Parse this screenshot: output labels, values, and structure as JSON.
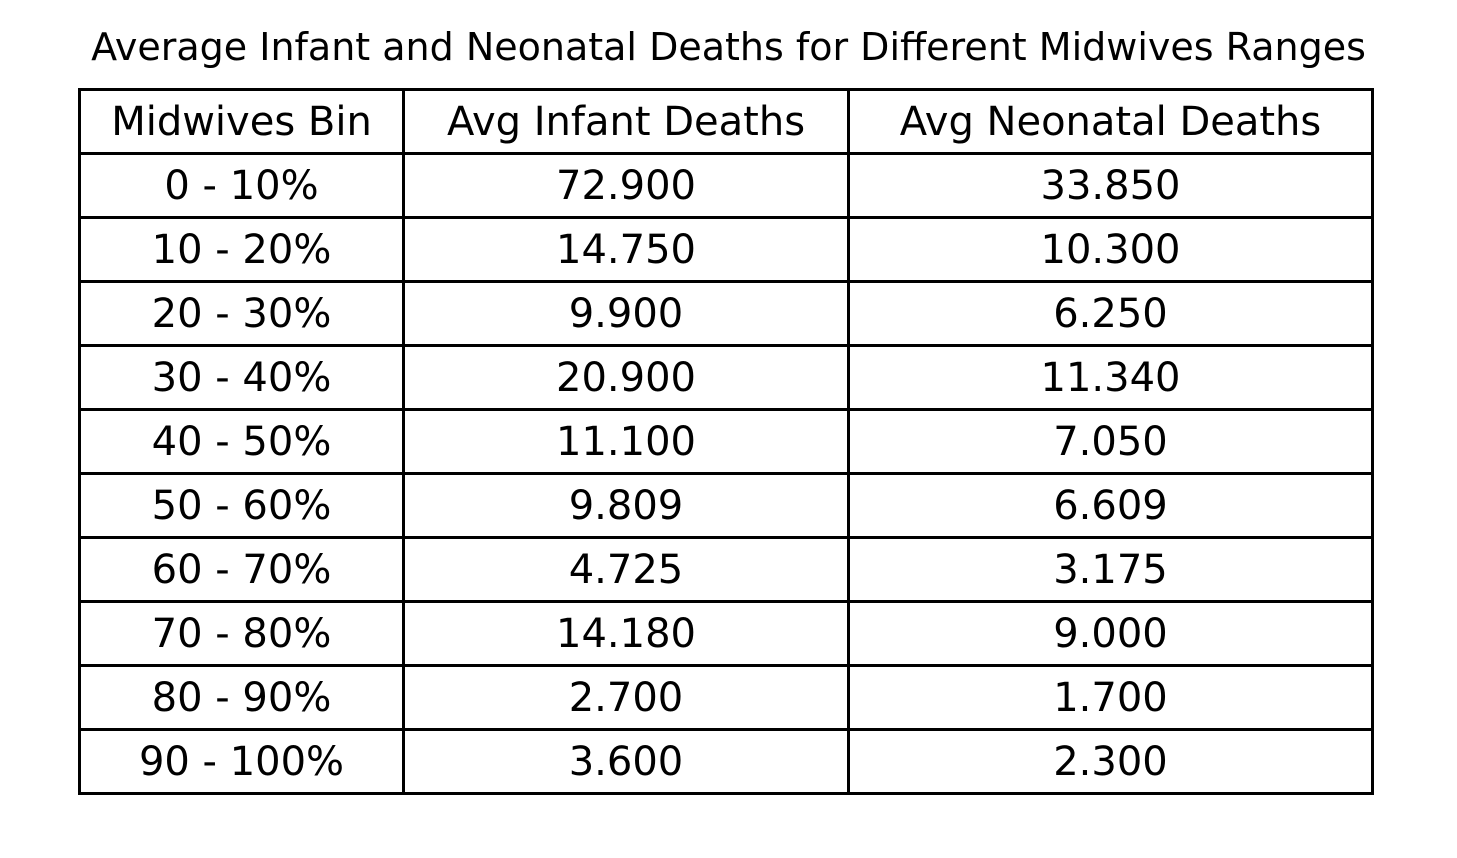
{
  "chart_data": {
    "type": "table",
    "title": "Average Infant and Neonatal Deaths for Different Midwives Ranges",
    "columns": [
      "Midwives Bin",
      "Avg Infant Deaths",
      "Avg Neonatal Deaths"
    ],
    "rows": [
      [
        "0 - 10%",
        "72.900",
        "33.850"
      ],
      [
        "10 - 20%",
        "14.750",
        "10.300"
      ],
      [
        "20 - 30%",
        "9.900",
        "6.250"
      ],
      [
        "30 - 40%",
        "20.900",
        "11.340"
      ],
      [
        "40 - 50%",
        "11.100",
        "7.050"
      ],
      [
        "50 - 60%",
        "9.809",
        "6.609"
      ],
      [
        "60 - 70%",
        "4.725",
        "3.175"
      ],
      [
        "70 - 80%",
        "14.180",
        "9.000"
      ],
      [
        "80 - 90%",
        "2.700",
        "1.700"
      ],
      [
        "90 - 100%",
        "3.600",
        "2.300"
      ]
    ]
  }
}
